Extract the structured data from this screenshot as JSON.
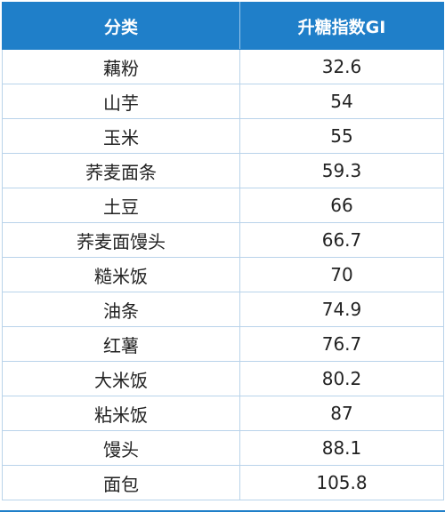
{
  "table": {
    "headers": [
      "分类",
      "升糖指数GI"
    ],
    "rows": [
      {
        "category": "藕粉",
        "gi": "32.6"
      },
      {
        "category": "山芋",
        "gi": "54"
      },
      {
        "category": "玉米",
        "gi": "55"
      },
      {
        "category": "荞麦面条",
        "gi": "59.3"
      },
      {
        "category": "土豆",
        "gi": "66"
      },
      {
        "category": "荞麦面馒头",
        "gi": "66.7"
      },
      {
        "category": "糙米饭",
        "gi": "70"
      },
      {
        "category": "油条",
        "gi": "74.9"
      },
      {
        "category": "红薯",
        "gi": "76.7"
      },
      {
        "category": "大米饭",
        "gi": "80.2"
      },
      {
        "category": "粘米饭",
        "gi": "87"
      },
      {
        "category": "馒头",
        "gi": "88.1"
      },
      {
        "category": "面包",
        "gi": "105.8"
      }
    ]
  },
  "colors": {
    "header_bg": "#1f7fc9",
    "header_text": "#ffffff",
    "grid_line": "#b9d3ea"
  }
}
